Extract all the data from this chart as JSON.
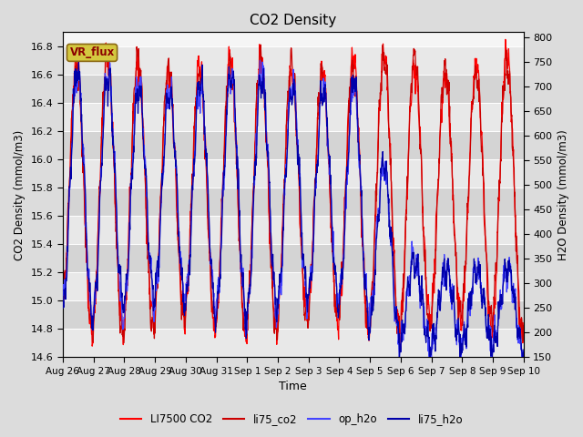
{
  "title": "CO2 Density",
  "xlabel": "Time",
  "ylabel_left": "CO2 Density (mmol/m3)",
  "ylabel_right": "H2O Density (mmol/m3)",
  "ylim_left": [
    14.6,
    16.9
  ],
  "ylim_right": [
    150,
    810
  ],
  "yticks_left": [
    14.6,
    14.8,
    15.0,
    15.2,
    15.4,
    15.6,
    15.8,
    16.0,
    16.2,
    16.4,
    16.6,
    16.8
  ],
  "yticks_right": [
    150,
    200,
    250,
    300,
    350,
    400,
    450,
    500,
    550,
    600,
    650,
    700,
    750,
    800
  ],
  "xtick_labels": [
    "Aug 26",
    "Aug 27",
    "Aug 28",
    "Aug 29",
    "Aug 30",
    "Aug 31",
    "Sep 1",
    "Sep 2",
    "Sep 3",
    "Sep 4",
    "Sep 5",
    "Sep 6",
    "Sep 7",
    "Sep 8",
    "Sep 9",
    "Sep 10"
  ],
  "bg_color": "#dcdcdc",
  "plot_bg_light": "#f5f5f5",
  "plot_bg_dark": "#e0e0e0",
  "line_LI7500": "#ff0000",
  "line_li75_co2": "#cc0000",
  "line_op_h2o": "#4444ff",
  "line_li75_h2o": "#0000aa",
  "vr_flux_bg": "#d4c840",
  "vr_flux_fg": "#8b0000",
  "legend_labels": [
    "LI7500 CO2",
    "li75_co2",
    "op_h2o",
    "li75_h2o"
  ]
}
